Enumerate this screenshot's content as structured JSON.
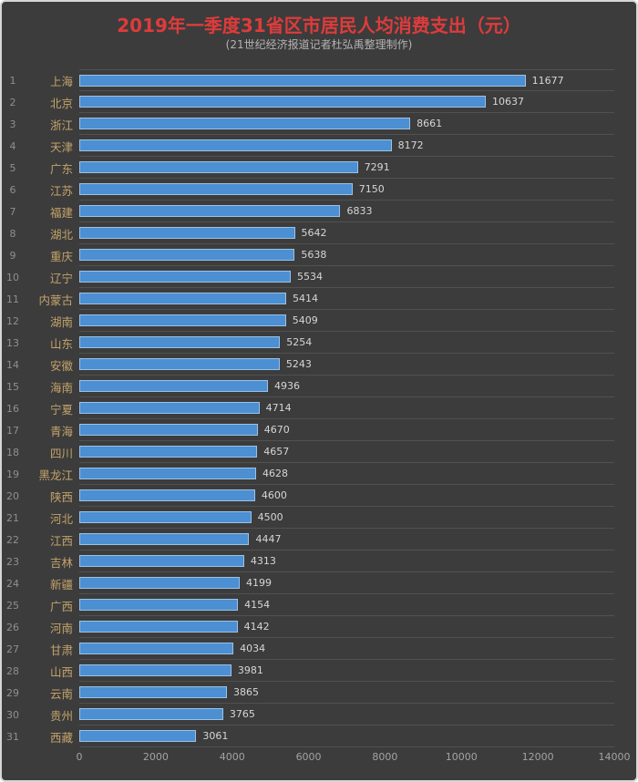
{
  "header": {
    "title": "2019年一季度31省区市居民人均消费支出（元）",
    "subtitle": "(21世纪经济报道记者杜弘禹整理制作)"
  },
  "colors": {
    "background": "#3c3c3c",
    "title": "#df3b3b",
    "subtitle": "#b3b3b3",
    "rank": "#8f8f8f",
    "province": "#c4a36a",
    "value": "#d6d6d6",
    "axis": "#a3a3a3",
    "gridline": "#515151",
    "bar_fill": "#4c8fd2",
    "bar_border": "#9cc2e5"
  },
  "chart_data": {
    "type": "bar",
    "orientation": "horizontal",
    "title": "2019年一季度31省区市居民人均消费支出（元）",
    "subtitle": "(21世纪经济报道记者杜弘禹整理制作)",
    "legend": "none",
    "grid": "row-separators",
    "xlim": [
      0,
      14000
    ],
    "x_ticks": [
      "0",
      "2000",
      "4000",
      "6000",
      "8000",
      "10000",
      "12000",
      "14000"
    ],
    "ranks": [
      1,
      2,
      3,
      4,
      5,
      6,
      7,
      8,
      9,
      10,
      11,
      12,
      13,
      14,
      15,
      16,
      17,
      18,
      19,
      20,
      21,
      22,
      23,
      24,
      25,
      26,
      27,
      28,
      29,
      30,
      31
    ],
    "categories": [
      "上海",
      "北京",
      "浙江",
      "天津",
      "广东",
      "江苏",
      "福建",
      "湖北",
      "重庆",
      "辽宁",
      "内蒙古",
      "湖南",
      "山东",
      "安徽",
      "海南",
      "宁夏",
      "青海",
      "四川",
      "黑龙江",
      "陕西",
      "河北",
      "江西",
      "吉林",
      "新疆",
      "广西",
      "河南",
      "甘肃",
      "山西",
      "云南",
      "贵州",
      "西藏"
    ],
    "values": [
      11677,
      10637,
      8661,
      8172,
      7291,
      7150,
      6833,
      5642,
      5638,
      5534,
      5414,
      5409,
      5254,
      5243,
      4936,
      4714,
      4670,
      4657,
      4628,
      4600,
      4500,
      4447,
      4313,
      4199,
      4154,
      4142,
      4034,
      3981,
      3865,
      3765,
      3061
    ]
  }
}
